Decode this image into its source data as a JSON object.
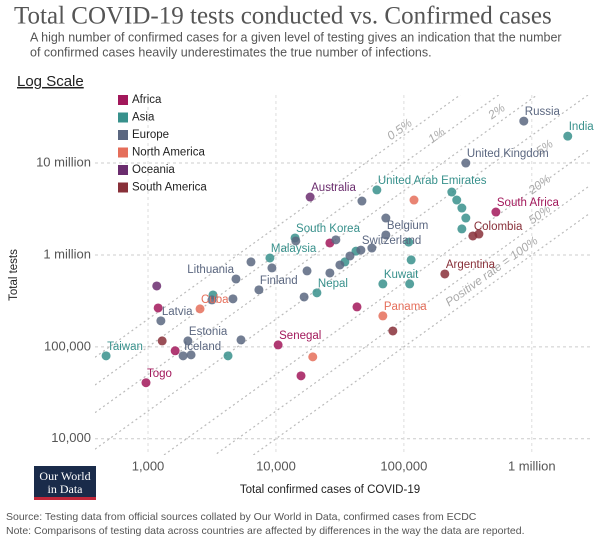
{
  "chart_data": {
    "type": "scatter",
    "title": "Total COVID-19 tests conducted vs. Confirmed cases",
    "subtitle": [
      "A high number of confirmed cases for a given level of testing gives an indication that the number",
      "of confirmed cases heavily underestimates the true number of infections."
    ],
    "scale_toggle": "Log Scale",
    "x_label": "Total confirmed cases of COVID-19",
    "y_label": "Total tests",
    "log_x": true,
    "log_y": true,
    "grid": true,
    "legend": "top-left",
    "xlim": [
      385,
      2800000
    ],
    "ylim": [
      7000,
      55000000
    ],
    "xticks": [
      {
        "value": 1000,
        "label": "1,000"
      },
      {
        "value": 10000,
        "label": "10,000"
      },
      {
        "value": 100000,
        "label": "100,000"
      },
      {
        "value": 1000000,
        "label": "1 million"
      }
    ],
    "yticks": [
      {
        "value": 10000,
        "label": "10,000"
      },
      {
        "value": 100000,
        "label": "100,000"
      },
      {
        "value": 1000000,
        "label": "1 million"
      },
      {
        "value": 10000000,
        "label": "10 million"
      }
    ],
    "rate_lines": [
      {
        "value": 0.5,
        "label": "0.5%"
      },
      {
        "value": 1,
        "label": "1%"
      },
      {
        "value": 2,
        "label": "2%"
      },
      {
        "value": 5,
        "label": "5%"
      },
      {
        "value": 20,
        "label": "20%"
      },
      {
        "value": 50,
        "label": "50%"
      },
      {
        "value": 100,
        "label": "Positive rate = 100%"
      }
    ],
    "series": [
      {
        "name": "Africa",
        "color": "#a2185b",
        "x": [
          10400,
          964,
          524000,
          1200,
          1630,
          26400,
          43000,
          15700
        ],
        "y": [
          105000,
          40700,
          2930000,
          265000,
          90600,
          1350000,
          272000,
          48400
        ],
        "labels": [
          "Senegal",
          "Togo",
          "South Africa",
          null,
          null,
          null,
          null,
          null
        ]
      },
      {
        "name": "Asia",
        "color": "#38918c",
        "x": [
          1910000,
          61500,
          14100,
          8970,
          68500,
          20900,
          470,
          237000,
          259000,
          284000,
          305000,
          284000,
          109000,
          114000,
          111000,
          42200,
          34600,
          3220,
          4220
        ],
        "y": [
          19600000,
          5100000,
          1530000,
          927000,
          484000,
          387000,
          79800,
          4840000,
          3960000,
          3240000,
          2520000,
          1920000,
          1380000,
          883000,
          484000,
          1100000,
          840000,
          367000,
          79800
        ],
        "labels": [
          "India",
          "United Arab Emirates",
          "South Korea",
          "Malaysia",
          "Kuwait",
          "Nepal",
          "Taiwan",
          null,
          null,
          null,
          null,
          null,
          null,
          null,
          null,
          null,
          null,
          null,
          null
        ]
      },
      {
        "name": "Europe",
        "color": "#5b6780",
        "x": [
          866000,
          305000,
          72300,
          46100,
          4870,
          7360,
          1260,
          2050,
          1880,
          47000,
          72300,
          29400,
          14300,
          56200,
          31600,
          17500,
          26400,
          37900,
          16600,
          9300,
          6380,
          4610,
          3160,
          2170,
          5330
        ],
        "y": [
          28600000,
          10000000,
          1650000,
          1130000,
          548000,
          417000,
          192000,
          116000,
          79800,
          3860000,
          2520000,
          1460000,
          1420000,
          1190000,
          778000,
          670000,
          637000,
          975000,
          349000,
          723000,
          840000,
          333000,
          324000,
          81800,
          119000
        ],
        "labels": [
          "Russia",
          "United Kingdom",
          "Belgium",
          "Switzerland",
          "Lithuania",
          "Finland",
          "Latvia",
          "Estonia",
          "Iceland",
          null,
          null,
          null,
          null,
          null,
          null,
          null,
          null,
          null,
          null,
          null,
          null,
          null,
          null,
          null,
          null
        ]
      },
      {
        "name": "North America",
        "color": "#e56e5a",
        "x": [
          2550,
          68500,
          120000,
          19400
        ],
        "y": [
          259000,
          217000,
          3960000,
          77800
        ],
        "labels": [
          "Cuba",
          "Panama",
          null,
          null
        ]
      },
      {
        "name": "Oceania",
        "color": "#6b2d6e",
        "x": [
          18500,
          1170
        ],
        "y": [
          4270000,
          460000
        ],
        "labels": [
          "Australia",
          null
        ]
      },
      {
        "name": "South America",
        "color": "#883039",
        "x": [
          346000,
          209000,
          386000,
          1290,
          82000
        ],
        "y": [
          1610000,
          621000,
          1690000,
          116000,
          149000
        ],
        "labels": [
          "Colombia",
          "Argentina",
          null,
          null,
          null
        ]
      }
    ]
  },
  "logo": [
    "Our World",
    "in Data"
  ],
  "footer": [
    "Source: Testing data from official sources collated by Our World in Data, confirmed cases from ECDC",
    "Note: Comparisons of testing data across countries are affected by differences in the way the data are reported."
  ]
}
